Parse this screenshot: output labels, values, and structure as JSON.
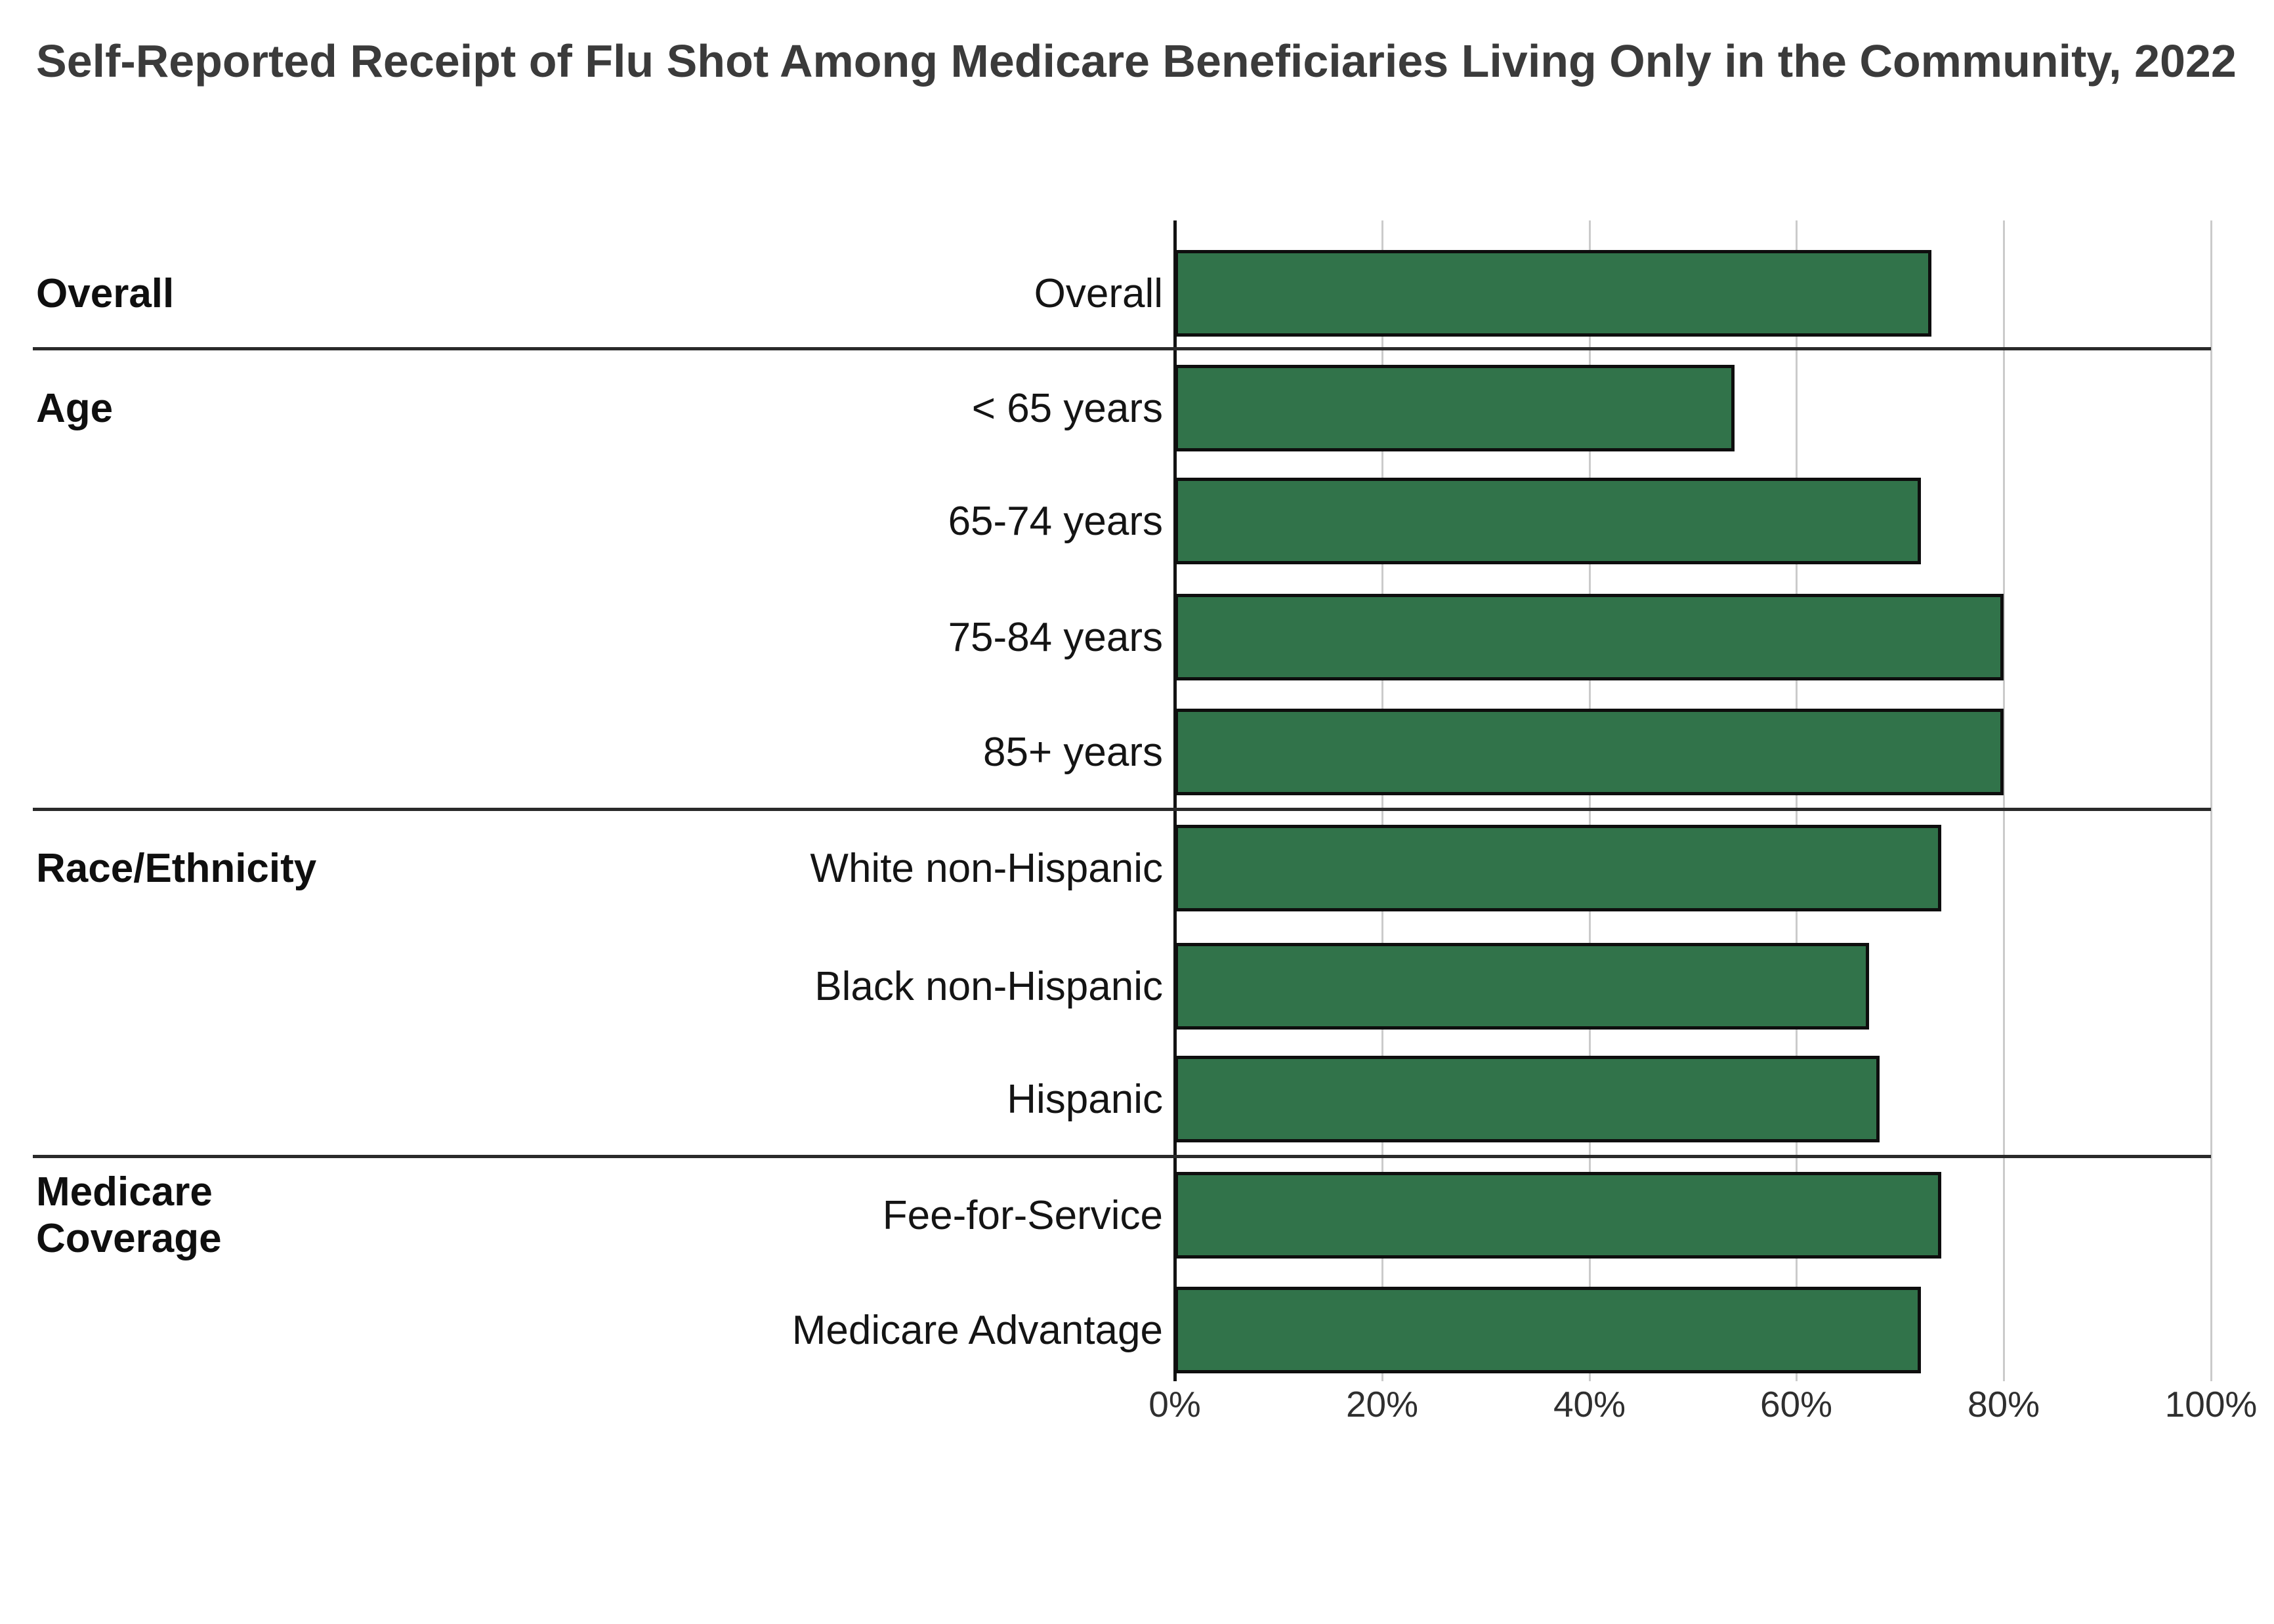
{
  "title": "Self-Reported Receipt of Flu Shot Among Medicare Beneficiaries Living Only in the Community, 2022",
  "colors": {
    "bar_fill": "#31734A",
    "bar_border": "#0E0E0E",
    "gridline": "#CBCBCB",
    "section_divider": "#2A2A2A",
    "axis_line": "#131313",
    "title_text": "#3B3B3B",
    "label_text": "#141414",
    "tick_text": "#2F2F2F"
  },
  "x_axis": {
    "tick_labels": [
      "0%",
      "20%",
      "40%",
      "60%",
      "80%",
      "100%"
    ],
    "tick_values": [
      0,
      20,
      40,
      60,
      80,
      100
    ]
  },
  "chart_data": {
    "type": "bar",
    "orientation": "horizontal",
    "title": "Self-Reported Receipt of Flu Shot Among Medicare Beneficiaries Living Only in the Community, 2022",
    "xlabel": "",
    "ylabel": "",
    "xlim": [
      0,
      100
    ],
    "unit": "%",
    "grid": true,
    "legend": false,
    "groups": [
      {
        "label": "Overall",
        "items": [
          {
            "label": "Overall",
            "value": 73
          }
        ]
      },
      {
        "label": "Age",
        "items": [
          {
            "label": "< 65 years",
            "value": 54
          },
          {
            "label": "65-74 years",
            "value": 72
          },
          {
            "label": "75-84 years",
            "value": 80
          },
          {
            "label": "85+ years",
            "value": 80
          }
        ]
      },
      {
        "label": "Race/Ethnicity",
        "items": [
          {
            "label": "White non-Hispanic",
            "value": 74
          },
          {
            "label": "Black non-Hispanic",
            "value": 67
          },
          {
            "label": "Hispanic",
            "value": 68
          }
        ]
      },
      {
        "label": "Medicare Coverage",
        "items": [
          {
            "label": "Fee-for-Service",
            "value": 74
          },
          {
            "label": "Medicare Advantage",
            "value": 72
          }
        ]
      }
    ]
  }
}
